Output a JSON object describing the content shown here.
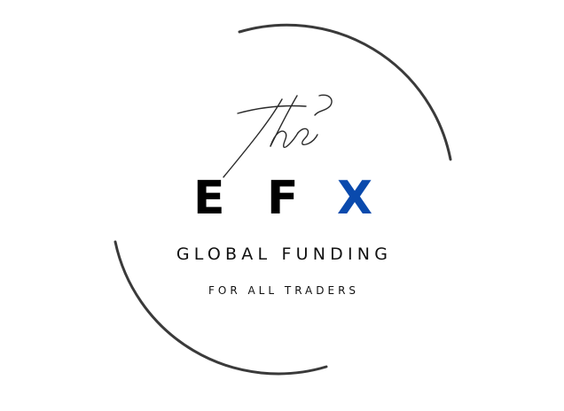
{
  "logo": {
    "script_word": "The",
    "letters": [
      {
        "text": "E",
        "color": "#000000"
      },
      {
        "text": "F",
        "color": "#000000"
      },
      {
        "text": "X",
        "color": "#0a4aad"
      }
    ],
    "tagline": "GLOBAL FUNDING",
    "subtagline": "FOR ALL TRADERS",
    "ring_color": "#3a3a3a"
  }
}
